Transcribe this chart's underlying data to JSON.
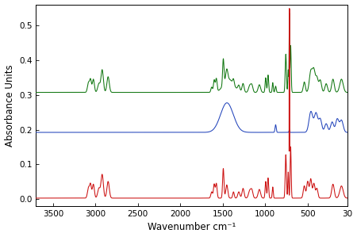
{
  "title": "",
  "xlabel": "Wavenumber cm⁻¹",
  "ylabel": "Absorbance Units",
  "xlim": [
    3700,
    30
  ],
  "ylim": [
    -0.02,
    0.56
  ],
  "yticks": [
    0.0,
    0.1,
    0.2,
    0.3,
    0.4,
    0.5
  ],
  "xticks": [
    3500,
    3000,
    2500,
    2000,
    1500,
    1000,
    500,
    30
  ],
  "colors": {
    "red": "#cc1111",
    "blue": "#2244bb",
    "green": "#117711"
  },
  "red_baseline": 0.003,
  "blue_baseline": 0.192,
  "green_baseline": 0.307,
  "background": "#ffffff"
}
